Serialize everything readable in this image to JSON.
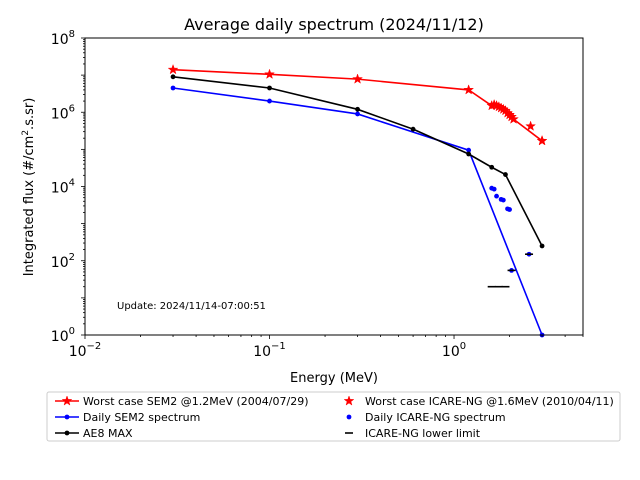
{
  "chart_data": {
    "type": "line",
    "title": "Average daily spectrum (2024/11/12)",
    "xlabel": "Energy (MeV)",
    "ylabel": "Integrated flux (#/cm².s.sr)",
    "xscale": "log",
    "yscale": "log",
    "xlim": [
      0.01,
      5
    ],
    "ylim": [
      1,
      100000000
    ],
    "x_ticks": [
      {
        "value": 0.01,
        "base": "10",
        "exp": "−2"
      },
      {
        "value": 0.1,
        "base": "10",
        "exp": "−1"
      },
      {
        "value": 1,
        "base": "10",
        "exp": "0"
      }
    ],
    "y_ticks": [
      {
        "value": 1,
        "base": "10",
        "exp": "0"
      },
      {
        "value": 100,
        "base": "10",
        "exp": "2"
      },
      {
        "value": 10000,
        "base": "10",
        "exp": "4"
      },
      {
        "value": 1000000,
        "base": "10",
        "exp": "6"
      },
      {
        "value": 100000000,
        "base": "10",
        "exp": "8"
      }
    ],
    "annotation": "Update: 2024/11/14-07:00:51",
    "grid": false,
    "legend_position": "bottom",
    "series": [
      {
        "name": "Worst case SEM2 @1.2MeV (2004/07/29)",
        "style": "line-star",
        "color": "#ff0000",
        "points": [
          [
            0.03,
            14000000
          ],
          [
            0.1,
            10500000
          ],
          [
            0.3,
            7800000
          ],
          [
            1.2,
            4000000
          ],
          [
            1.6,
            1500000
          ],
          [
            1.65,
            1600000
          ],
          [
            1.7,
            1500000
          ],
          [
            1.75,
            1400000
          ],
          [
            1.8,
            1300000
          ],
          [
            1.85,
            1200000
          ],
          [
            1.9,
            1100000
          ],
          [
            1.95,
            950000
          ],
          [
            2.0,
            850000
          ],
          [
            2.05,
            750000
          ],
          [
            2.1,
            650000
          ],
          [
            3.0,
            170000
          ]
        ]
      },
      {
        "name": "Daily SEM2 spectrum",
        "style": "line-dot",
        "color": "#0000ff",
        "points": [
          [
            0.03,
            4500000
          ],
          [
            0.1,
            2000000
          ],
          [
            0.3,
            900000
          ],
          [
            1.2,
            95000
          ],
          [
            3.0,
            1
          ]
        ]
      },
      {
        "name": "AE8 MAX",
        "style": "line-dot",
        "color": "#000000",
        "points": [
          [
            0.03,
            9000000
          ],
          [
            0.1,
            4500000
          ],
          [
            0.3,
            1200000
          ],
          [
            0.6,
            350000
          ],
          [
            1.2,
            75000
          ],
          [
            1.6,
            33000
          ],
          [
            1.9,
            21000
          ],
          [
            3.0,
            250
          ]
        ]
      },
      {
        "name": "Worst case ICARE-NG @1.6MeV (2010/04/11)",
        "style": "star-markers",
        "color": "#ff0000",
        "points": [
          [
            2.6,
            420000
          ],
          [
            3.0,
            170000
          ]
        ]
      },
      {
        "name": "Daily ICARE-NG spectrum",
        "style": "dot-markers",
        "color": "#0000ff",
        "points": [
          [
            1.6,
            9000
          ],
          [
            1.65,
            8500
          ],
          [
            1.7,
            5500
          ],
          [
            1.8,
            4500
          ],
          [
            1.85,
            4300
          ],
          [
            1.95,
            2500
          ],
          [
            2.0,
            2400
          ],
          [
            2.05,
            55
          ],
          [
            2.55,
            150
          ]
        ]
      },
      {
        "name": "ICARE-NG lower limit",
        "style": "dash-markers",
        "color": "#000000",
        "points": [
          [
            1.6,
            20
          ],
          [
            1.75,
            20
          ],
          [
            1.9,
            20
          ],
          [
            2.05,
            55
          ],
          [
            2.55,
            150
          ]
        ]
      }
    ]
  }
}
